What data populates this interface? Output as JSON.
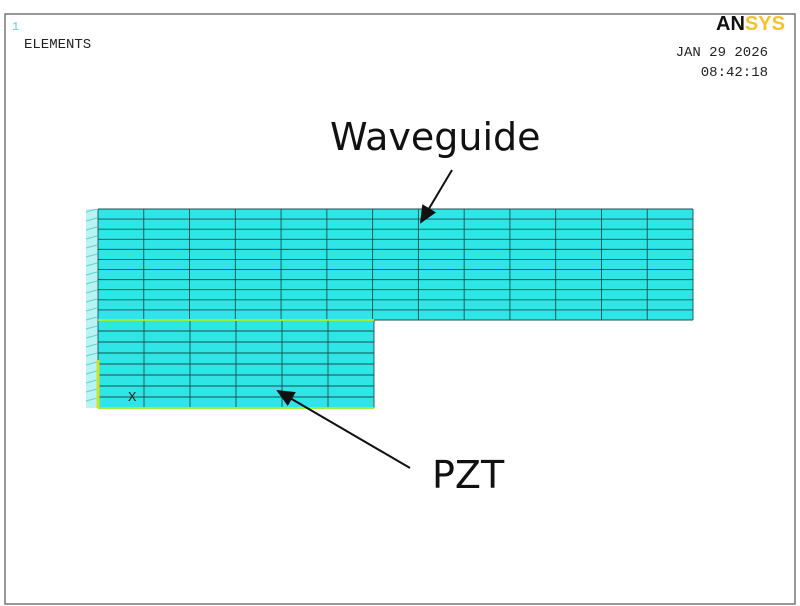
{
  "header": {
    "window_number": "1",
    "plot_label": "ELEMENTS",
    "logo": {
      "part1": "AN",
      "part2": "SYS"
    },
    "date": "JAN 29 2026",
    "time": "08:42:18"
  },
  "annotations": {
    "waveguide": "Waveguide",
    "pzt": "PZT"
  },
  "axis": {
    "x": "X"
  }
}
